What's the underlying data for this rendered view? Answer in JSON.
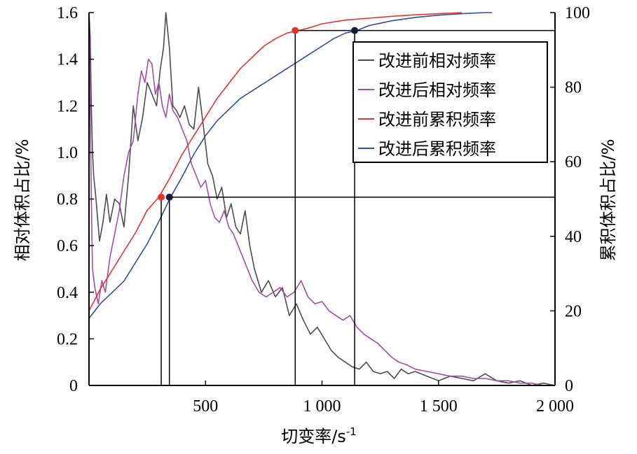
{
  "chart_data": {
    "type": "line",
    "xlabel": "切变率/s",
    "xlabel_sup": "-1",
    "ylabel_left": "相对体积占比/%",
    "ylabel_right": "累积体积占比/%",
    "xlim": [
      0,
      2000
    ],
    "ylim_left": [
      0,
      1.6
    ],
    "ylim_right": [
      0,
      100
    ],
    "x_ticks": [
      {
        "value": 500,
        "label": "500"
      },
      {
        "value": 1000,
        "label": "1 000"
      },
      {
        "value": 1500,
        "label": "1 500"
      },
      {
        "value": 2000,
        "label": "2 000"
      }
    ],
    "y_left_ticks": [
      {
        "value": 0,
        "label": "0"
      },
      {
        "value": 0.2,
        "label": "0.2"
      },
      {
        "value": 0.4,
        "label": "0.4"
      },
      {
        "value": 0.6,
        "label": "0.6"
      },
      {
        "value": 0.8,
        "label": "0.8"
      },
      {
        "value": 1.0,
        "label": "1.0"
      },
      {
        "value": 1.2,
        "label": "1.2"
      },
      {
        "value": 1.4,
        "label": "1.4"
      },
      {
        "value": 1.6,
        "label": "1.6"
      }
    ],
    "y_right_ticks": [
      {
        "value": 0,
        "label": "0"
      },
      {
        "value": 20,
        "label": "20"
      },
      {
        "value": 40,
        "label": "40"
      },
      {
        "value": 60,
        "label": "60"
      },
      {
        "value": 80,
        "label": "80"
      },
      {
        "value": 100,
        "label": "100"
      }
    ],
    "legend_position": "top-right",
    "series": [
      {
        "name": "改进前相对频率",
        "axis": "left",
        "color": "#4d4d4d",
        "x": [
          0,
          5,
          10,
          15,
          20,
          30,
          45,
          60,
          75,
          90,
          110,
          130,
          150,
          170,
          190,
          210,
          230,
          250,
          270,
          290,
          305,
          320,
          330,
          345,
          360,
          375,
          390,
          410,
          430,
          450,
          470,
          490,
          510,
          530,
          550,
          570,
          590,
          610,
          630,
          650,
          670,
          690,
          710,
          740,
          770,
          800,
          830,
          860,
          890,
          920,
          950,
          980,
          1010,
          1040,
          1070,
          1100,
          1130,
          1160,
          1190,
          1220,
          1250,
          1280,
          1310,
          1340,
          1370,
          1400,
          1450,
          1500,
          1550,
          1600,
          1650,
          1700,
          1750,
          1800,
          1850,
          1900,
          1950,
          2000
        ],
        "y": [
          1.6,
          1.5,
          1.2,
          1.0,
          0.9,
          0.8,
          0.62,
          0.7,
          0.82,
          0.7,
          0.8,
          0.78,
          0.68,
          0.9,
          1.2,
          1.05,
          1.15,
          1.3,
          1.25,
          1.2,
          1.35,
          1.45,
          1.6,
          1.45,
          1.2,
          1.18,
          1.15,
          1.2,
          1.12,
          1.1,
          1.28,
          1.12,
          0.95,
          0.9,
          0.8,
          0.85,
          0.72,
          0.78,
          0.68,
          0.65,
          0.75,
          0.6,
          0.5,
          0.4,
          0.45,
          0.38,
          0.42,
          0.3,
          0.35,
          0.28,
          0.22,
          0.25,
          0.2,
          0.15,
          0.12,
          0.1,
          0.08,
          0.07,
          0.1,
          0.06,
          0.05,
          0.06,
          0.03,
          0.07,
          0.05,
          0.06,
          0.04,
          0.02,
          0.04,
          0.03,
          0.02,
          0.05,
          0.02,
          0.01,
          0.02,
          0.0,
          0.01,
          0.0
        ]
      },
      {
        "name": "改进后相对频率",
        "axis": "left",
        "color": "#a64ca6",
        "x": [
          0,
          5,
          10,
          15,
          25,
          40,
          55,
          70,
          90,
          110,
          130,
          150,
          170,
          190,
          210,
          225,
          240,
          255,
          270,
          285,
          300,
          315,
          330,
          345,
          360,
          380,
          400,
          420,
          440,
          460,
          480,
          500,
          520,
          540,
          560,
          580,
          600,
          620,
          640,
          660,
          680,
          700,
          730,
          760,
          790,
          820,
          850,
          880,
          910,
          940,
          970,
          1000,
          1030,
          1060,
          1090,
          1120,
          1150,
          1180,
          1210,
          1240,
          1270,
          1300,
          1330,
          1360,
          1400,
          1450,
          1500,
          1550,
          1600,
          1650,
          1700,
          1750,
          1800,
          1850,
          1900,
          1950,
          2000
        ],
        "y": [
          1.6,
          1.2,
          0.8,
          0.5,
          0.42,
          0.35,
          0.45,
          0.4,
          0.55,
          0.65,
          0.75,
          0.9,
          1.0,
          1.05,
          1.25,
          1.35,
          1.3,
          1.4,
          1.38,
          1.25,
          1.3,
          1.2,
          1.15,
          1.25,
          1.18,
          1.15,
          1.1,
          1.05,
          0.95,
          0.9,
          0.85,
          0.88,
          0.78,
          0.72,
          0.7,
          0.75,
          0.68,
          0.65,
          0.6,
          0.55,
          0.5,
          0.45,
          0.4,
          0.38,
          0.4,
          0.42,
          0.38,
          0.4,
          0.45,
          0.38,
          0.35,
          0.36,
          0.32,
          0.3,
          0.28,
          0.3,
          0.25,
          0.22,
          0.2,
          0.18,
          0.15,
          0.12,
          0.1,
          0.09,
          0.07,
          0.06,
          0.05,
          0.04,
          0.04,
          0.03,
          0.03,
          0.02,
          0.02,
          0.01,
          0.01,
          0.0,
          0.0
        ]
      },
      {
        "name": "改进前累积频率",
        "axis": "right",
        "color": "#e8332c",
        "x": [
          0,
          50,
          100,
          150,
          200,
          250,
          300,
          350,
          400,
          450,
          500,
          550,
          600,
          650,
          700,
          750,
          800,
          850,
          900,
          950,
          1000,
          1100,
          1200,
          1300,
          1400,
          1500,
          1600
        ],
        "y": [
          20,
          26,
          31,
          36,
          41,
          47,
          50.5,
          56,
          62,
          67,
          72,
          77,
          81,
          85,
          88,
          91,
          93,
          94.5,
          95.2,
          96,
          97,
          98,
          98.5,
          99,
          99.4,
          99.7,
          100
        ]
      },
      {
        "name": "改进后累积频率",
        "axis": "right",
        "color": "#2e4f9f",
        "x": [
          0,
          50,
          100,
          150,
          200,
          250,
          300,
          350,
          400,
          450,
          500,
          550,
          600,
          650,
          700,
          750,
          800,
          850,
          900,
          950,
          1000,
          1050,
          1100,
          1150,
          1200,
          1300,
          1400,
          1500,
          1600,
          1700,
          1730
        ],
        "y": [
          18,
          22,
          25,
          28,
          33,
          38,
          44,
          50.5,
          56,
          62,
          67,
          71,
          74,
          77,
          79,
          81,
          83,
          85,
          87,
          89,
          91,
          93,
          94.5,
          95.2,
          96.5,
          97.8,
          98.7,
          99.3,
          99.7,
          100,
          100
        ]
      }
    ],
    "markers": [
      {
        "series": "改进前累积频率",
        "x": 310,
        "y": 50.5,
        "color": "#e8332c"
      },
      {
        "series": "改进后累积频率",
        "x": 345,
        "y": 50.5,
        "color": "#1a1a3a"
      },
      {
        "series": "改进前累积频率",
        "x": 885,
        "y": 95.2,
        "color": "#e8332c"
      },
      {
        "series": "改进后累积频率",
        "x": 1140,
        "y": 95.2,
        "color": "#1a1a3a"
      }
    ],
    "guide_right_levels": [
      50.5,
      95.2
    ],
    "guide_x_values": [
      310,
      345,
      885,
      1140
    ]
  }
}
